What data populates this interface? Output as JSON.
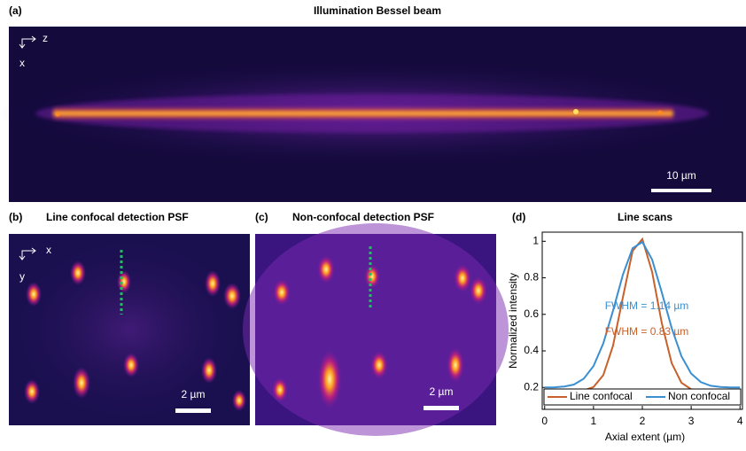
{
  "panels": {
    "a": {
      "label": "(a)",
      "title": "Illumination  Bessel beam",
      "axis_h": "z",
      "axis_v": "x",
      "scalebar": "10 µm"
    },
    "b": {
      "label": "(b)",
      "title": "Line confocal detection PSF",
      "axis_h": "x",
      "axis_v": "y",
      "scalebar": "2 µm"
    },
    "c": {
      "label": "(c)",
      "title": "Non-confocal detection PSF",
      "scalebar": "2 µm"
    }
  },
  "chart_data": {
    "type": "line",
    "label": "(d)",
    "title": "Line scans",
    "x_label": "Axial extent (µm)",
    "y_label": "Normalized intensity",
    "x": [
      0,
      0.2,
      0.4,
      0.6,
      0.8,
      1.0,
      1.2,
      1.4,
      1.6,
      1.8,
      2.0,
      2.2,
      2.4,
      2.6,
      2.8,
      3.0,
      3.2,
      3.4,
      3.6,
      3.8,
      4.0
    ],
    "series": [
      {
        "name": "Line confocal",
        "color": "#c8602a",
        "annotation": "FWHM = 0.83 µm",
        "values": [
          0.18,
          0.18,
          0.18,
          0.18,
          0.184,
          0.202,
          0.267,
          0.428,
          0.692,
          0.947,
          1.012,
          0.833,
          0.551,
          0.333,
          0.226,
          0.19,
          0.182,
          0.18,
          0.18,
          0.18,
          0.18
        ]
      },
      {
        "name": "Non confocal",
        "color": "#3a8fd0",
        "annotation": "FWHM = 1.14 µm",
        "values": [
          0.2,
          0.201,
          0.205,
          0.216,
          0.248,
          0.317,
          0.441,
          0.62,
          0.816,
          0.962,
          0.996,
          0.9,
          0.719,
          0.525,
          0.371,
          0.276,
          0.229,
          0.209,
          0.202,
          0.2,
          0.2
        ]
      }
    ],
    "xlim": [
      -0.05,
      4.05
    ],
    "ylim": [
      0.08,
      1.05
    ],
    "xticks": [
      0,
      1,
      2,
      3,
      4
    ],
    "yticks": [
      0.2,
      0.4,
      0.6,
      0.8,
      1
    ],
    "legend": "lower center"
  }
}
